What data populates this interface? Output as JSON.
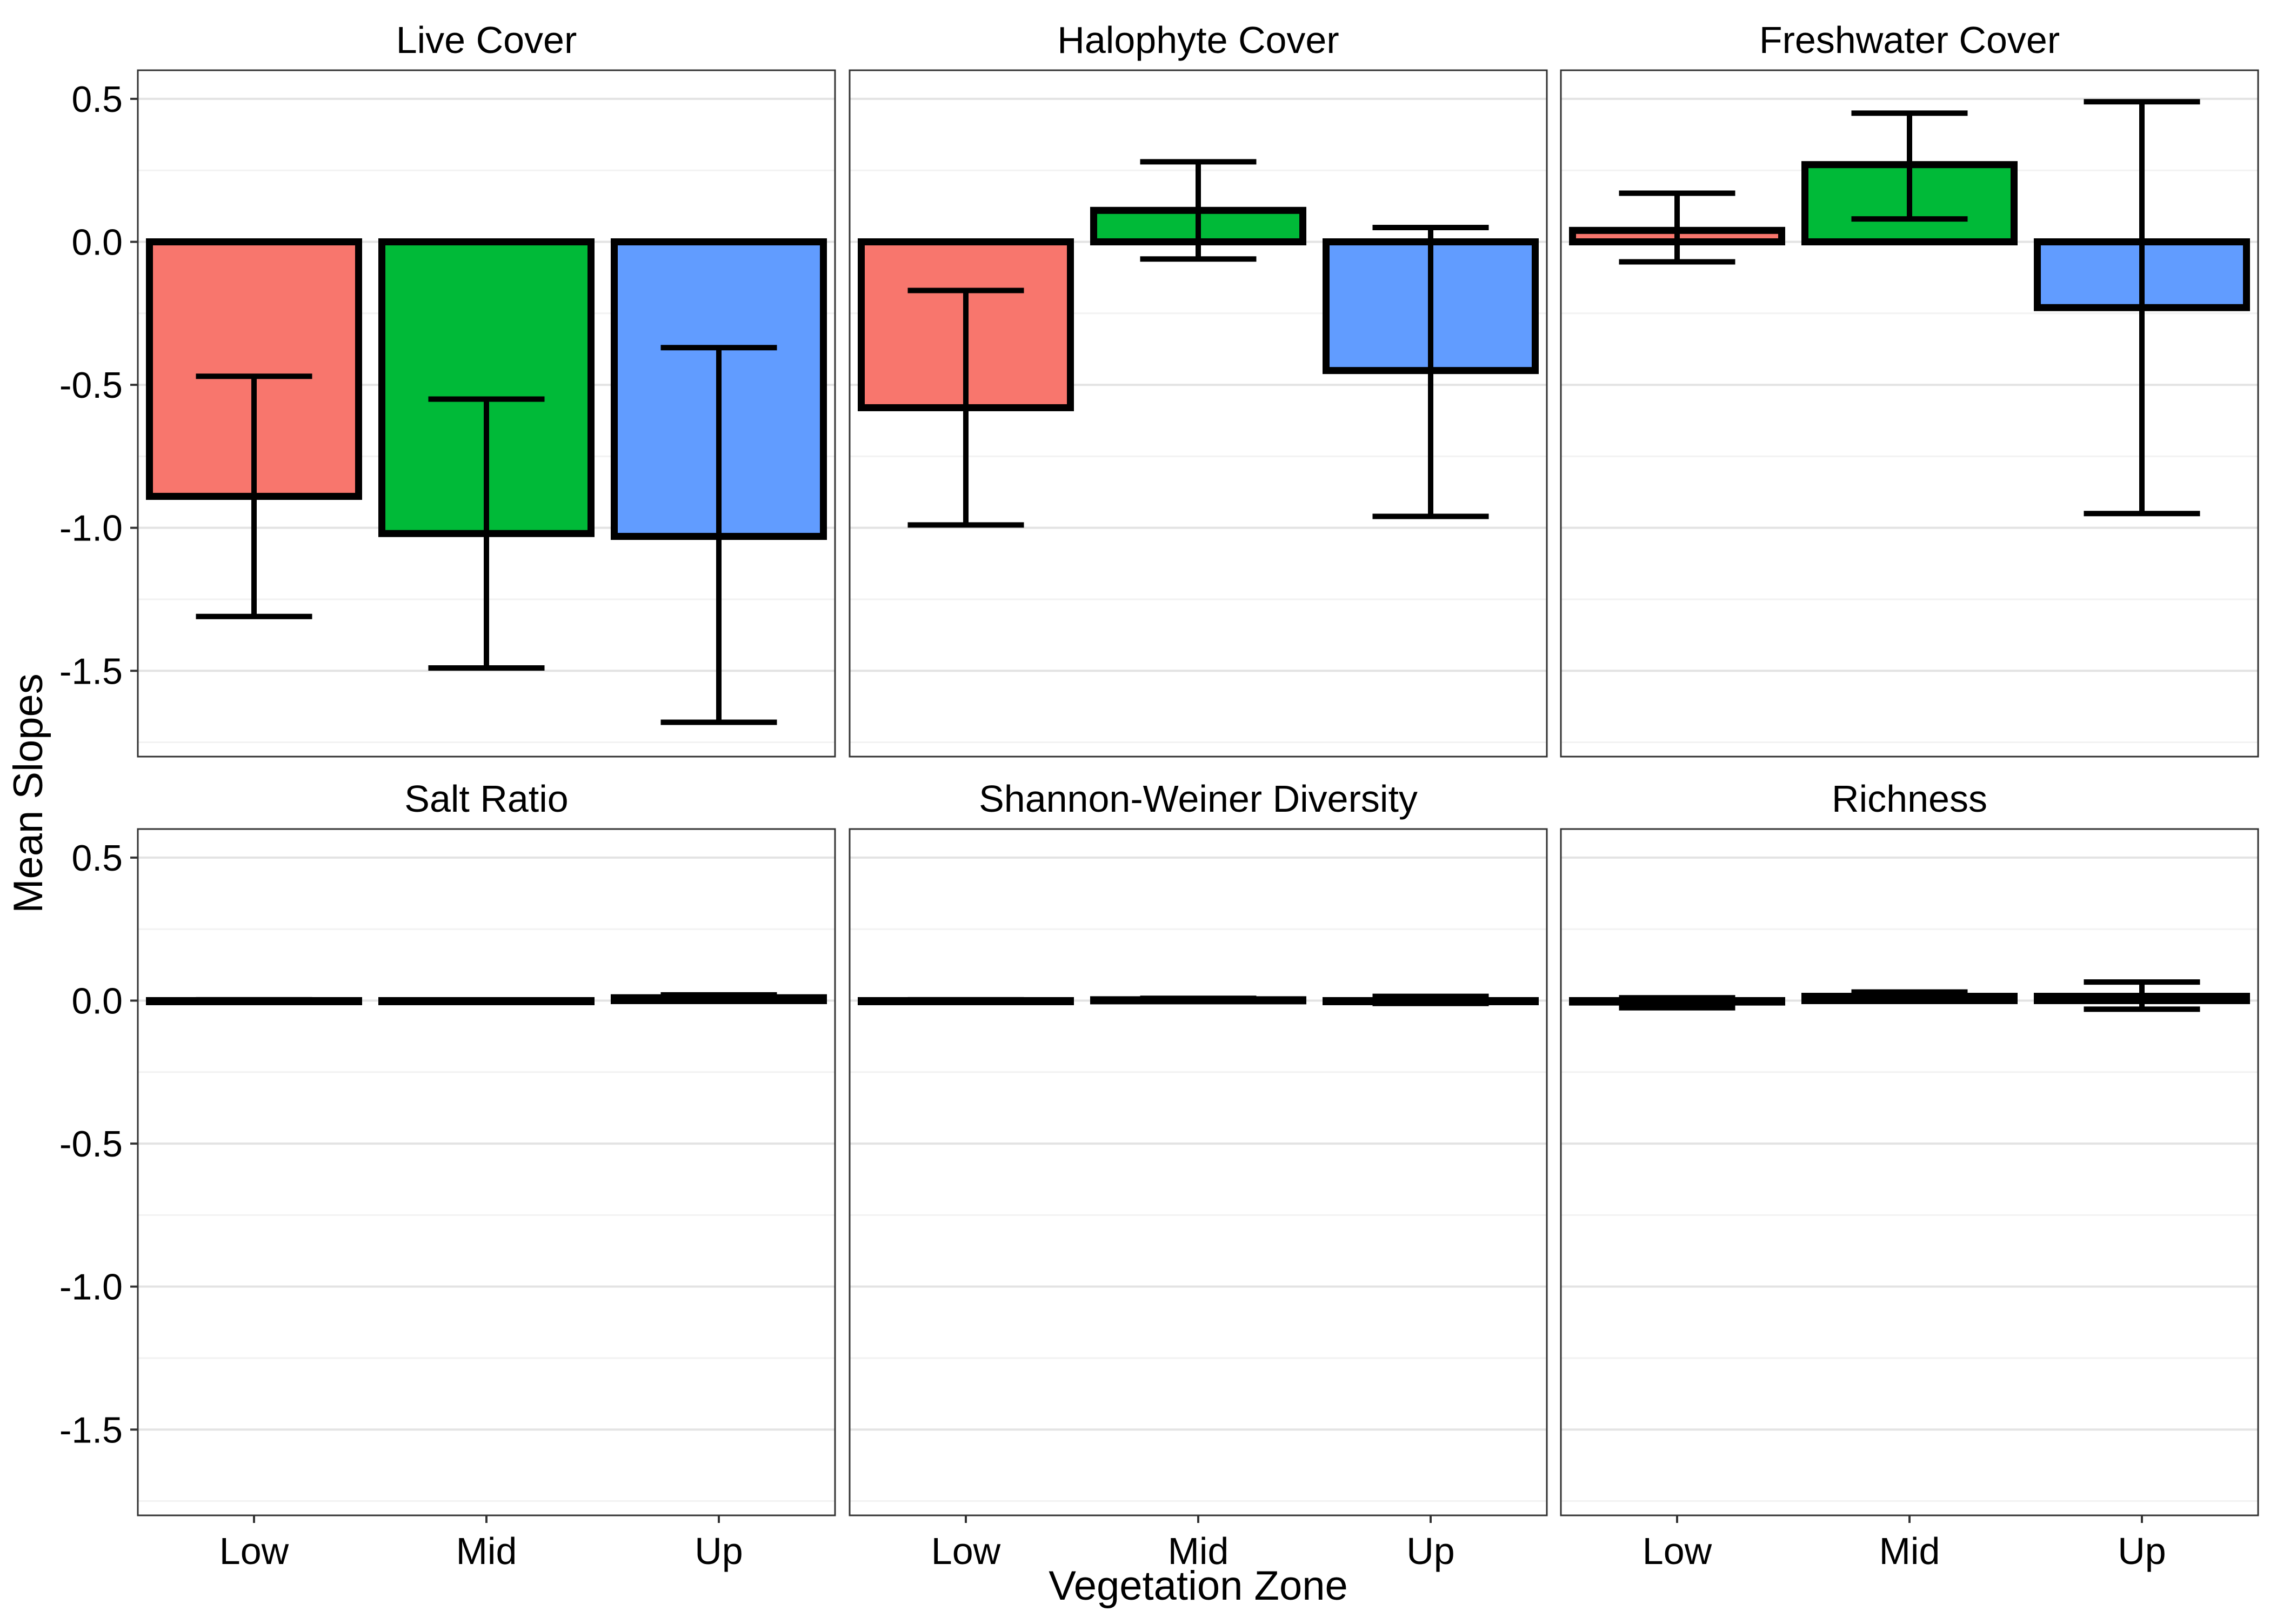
{
  "chart_data": {
    "type": "bar",
    "facet_layout": "2 rows x 3 columns, shared y axis",
    "xlabel": "Vegetation Zone",
    "ylabel": "Mean Slopes",
    "categories": [
      "Low",
      "Mid",
      "Up"
    ],
    "ylim": [
      -1.8,
      0.6
    ],
    "yticks": [
      0.5,
      0.0,
      -0.5,
      -1.0,
      -1.5
    ],
    "ytick_labels": [
      "0.5",
      "0.0",
      "-0.5",
      "-1.0",
      "-1.5"
    ],
    "grid": true,
    "legend": "none",
    "colors": {
      "Low": "#F8766D",
      "Mid": "#00BA38",
      "Up": "#619CFF"
    },
    "panels": [
      {
        "title": "Live Cover",
        "values": [
          -0.89,
          -1.02,
          -1.03
        ],
        "error_low": [
          -1.31,
          -1.49,
          -1.68
        ],
        "error_high": [
          -0.47,
          -0.55,
          -0.37
        ]
      },
      {
        "title": "Halophyte Cover",
        "values": [
          -0.58,
          0.11,
          -0.45
        ],
        "error_low": [
          -0.99,
          -0.06,
          -0.96
        ],
        "error_high": [
          -0.17,
          0.28,
          0.05
        ]
      },
      {
        "title": "Freshwater Cover",
        "values": [
          0.04,
          0.27,
          -0.23
        ],
        "error_low": [
          -0.07,
          0.08,
          -0.95
        ],
        "error_high": [
          0.17,
          0.45,
          0.49
        ]
      },
      {
        "title": "Salt Ratio",
        "values": [
          0.0,
          -0.001,
          0.01
        ],
        "error_low": [
          -0.003,
          -0.004,
          0.0
        ],
        "error_high": [
          0.003,
          0.002,
          0.02
        ]
      },
      {
        "title": "Shannon-Weiner Diversity",
        "values": [
          0.0,
          0.003,
          0.0
        ],
        "error_low": [
          -0.003,
          -0.002,
          -0.01
        ],
        "error_high": [
          0.003,
          0.008,
          0.015
        ]
      },
      {
        "title": "Richness",
        "values": [
          -0.005,
          0.015,
          0.015
        ],
        "error_low": [
          -0.025,
          0.0,
          -0.03
        ],
        "error_high": [
          0.01,
          0.03,
          0.065
        ]
      }
    ]
  }
}
